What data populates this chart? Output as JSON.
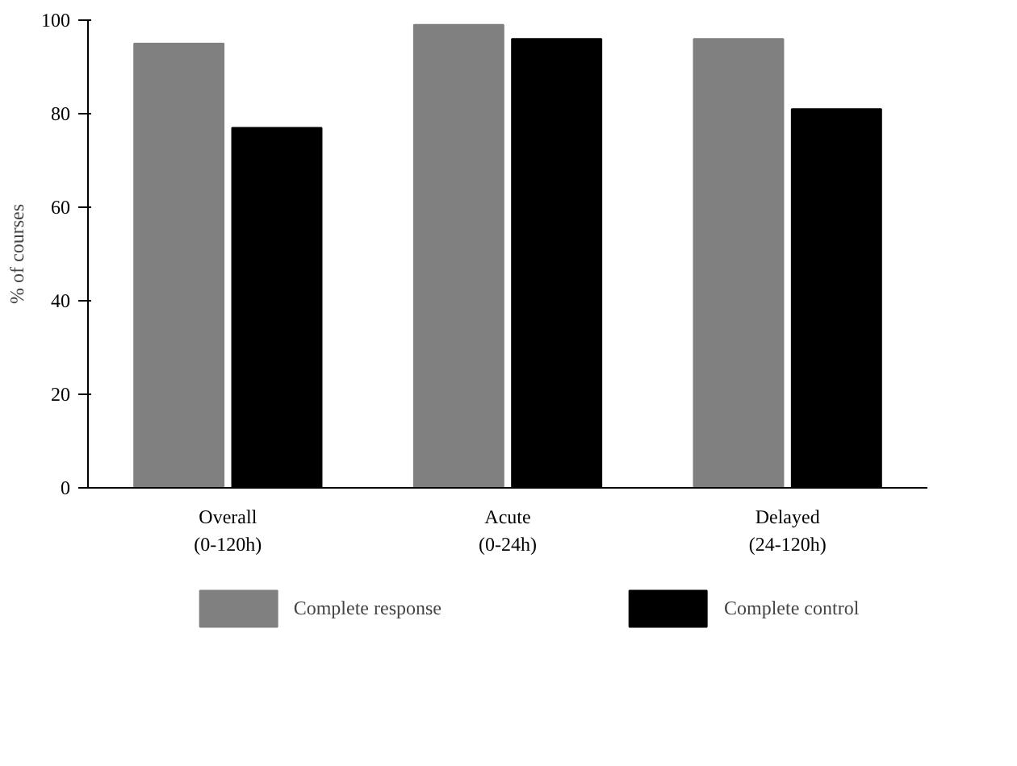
{
  "chart_data": {
    "type": "bar",
    "ylabel": "% of courses",
    "categories": [
      "Overall\n(0-120h)",
      "Acute\n(0-24h)",
      "Delayed\n(24-120h)"
    ],
    "series": [
      {
        "name": "Complete response",
        "color": "#808080",
        "values": [
          95,
          99,
          96
        ]
      },
      {
        "name": "Complete control",
        "color": "#000000",
        "values": [
          77,
          96,
          81
        ]
      }
    ],
    "ylim": [
      0,
      100
    ],
    "yticks": [
      0,
      20,
      40,
      60,
      80,
      100
    ],
    "grid": false,
    "legend": "bottom"
  }
}
